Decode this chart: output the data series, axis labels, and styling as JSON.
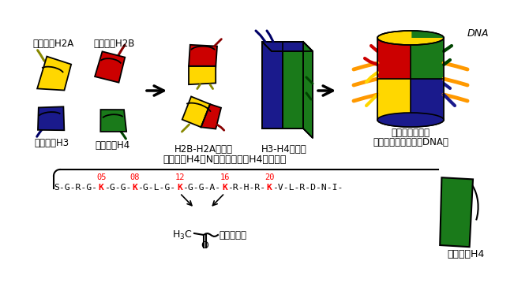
{
  "bg_color": "#ffffff",
  "colors": {
    "yellow": "#FFD700",
    "red": "#CC0000",
    "blue": "#1a1a8c",
    "green": "#1a7a1a",
    "orange": "#FF9900",
    "dark_yellow": "#888800",
    "dark_red": "#880000",
    "dark_blue": "#000066",
    "dark_green": "#004400"
  },
  "labels": {
    "h2a": "ヒストンH2A",
    "h2b": "ヒストンH2B",
    "h3": "ヒストンH3",
    "h4": "ヒストンH4",
    "dimer": "H2B-H2A二量体",
    "tetramer": "H3-H4四量体",
    "nucleosome_line1": "ヌクレオソーム",
    "nucleosome_line2": "（ヒストン八量体＋DNA）",
    "dna": "DNA",
    "seq_title": "ヒストンH4のN末端テイル（H4テイル）",
    "sequence": "S-G-R-G-K-G-G-K-G-L-G-K-G-G-A-K-R-H-R-K-V-L-R-D-N-I-",
    "pos_labels": [
      "05",
      "08",
      "12",
      "16",
      "20"
    ],
    "k_char_indices": [
      8,
      14,
      22,
      30,
      38
    ],
    "acetyl": "アセチル基",
    "h4_bottom": "ヒストンH4"
  }
}
